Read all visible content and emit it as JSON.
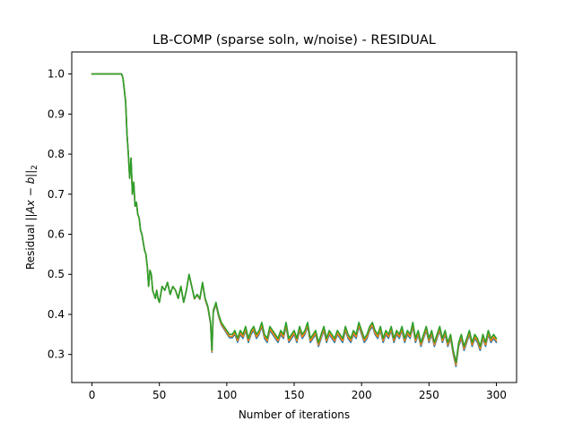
{
  "chart_data": {
    "type": "line",
    "title": "LB-COMP (sparse soln, w/noise) - RESIDUAL",
    "xlabel": "Number of iterations",
    "ylabel_prefix": "Residual ",
    "ylabel_math": "||Ax − b||",
    "ylabel_sub": "2",
    "xlim": [
      -15,
      315
    ],
    "ylim": [
      0.23,
      1.055
    ],
    "xticks": [
      0,
      50,
      100,
      150,
      200,
      250,
      300
    ],
    "xtick_labels": [
      "0",
      "50",
      "100",
      "150",
      "200",
      "250",
      "300"
    ],
    "yticks": [
      0.3,
      0.4,
      0.5,
      0.6,
      0.7,
      0.8,
      0.9,
      1.0
    ],
    "ytick_labels": [
      "0.3",
      "0.4",
      "0.5",
      "0.6",
      "0.7",
      "0.8",
      "0.9",
      "1.0"
    ],
    "grid": false,
    "legend": "none",
    "series": [
      {
        "color": "#1f77b4",
        "offset": -0.01
      },
      {
        "color": "#ff7f0e",
        "offset": -0.006
      },
      {
        "color": "#2ca02c",
        "offset": 0.0
      }
    ],
    "base_x": [
      0,
      22,
      23,
      25,
      26,
      27,
      28,
      29,
      30,
      31,
      32,
      33,
      34,
      35,
      36,
      37,
      38,
      39,
      40,
      41,
      42,
      43,
      44,
      45,
      46,
      47,
      48,
      49,
      50,
      52,
      54,
      56,
      58,
      60,
      62,
      64,
      66,
      68,
      70,
      72,
      74,
      76,
      78,
      80,
      82,
      84,
      86,
      88,
      89,
      90,
      92,
      94,
      96,
      98,
      100,
      102,
      104,
      106,
      108,
      110,
      112,
      114,
      116,
      118,
      120,
      122,
      124,
      126,
      128,
      130,
      132,
      134,
      136,
      138,
      140,
      142,
      144,
      146,
      148,
      150,
      152,
      154,
      156,
      158,
      160,
      162,
      164,
      166,
      168,
      170,
      172,
      174,
      176,
      178,
      180,
      182,
      184,
      186,
      188,
      190,
      192,
      194,
      196,
      198,
      200,
      202,
      204,
      206,
      208,
      210,
      212,
      214,
      216,
      218,
      220,
      222,
      224,
      226,
      228,
      230,
      232,
      234,
      236,
      238,
      240,
      242,
      244,
      246,
      248,
      250,
      252,
      254,
      256,
      258,
      260,
      262,
      264,
      266,
      268,
      270,
      272,
      274,
      276,
      278,
      280,
      282,
      284,
      286,
      288,
      290,
      292,
      294,
      296,
      298,
      300
    ],
    "base_y": [
      1.0,
      1.0,
      0.99,
      0.93,
      0.85,
      0.8,
      0.74,
      0.79,
      0.7,
      0.73,
      0.67,
      0.68,
      0.65,
      0.64,
      0.61,
      0.6,
      0.58,
      0.56,
      0.55,
      0.52,
      0.47,
      0.51,
      0.5,
      0.46,
      0.45,
      0.44,
      0.46,
      0.44,
      0.43,
      0.47,
      0.46,
      0.48,
      0.45,
      0.47,
      0.46,
      0.44,
      0.47,
      0.43,
      0.46,
      0.5,
      0.47,
      0.44,
      0.45,
      0.44,
      0.48,
      0.44,
      0.42,
      0.38,
      0.31,
      0.41,
      0.43,
      0.4,
      0.38,
      0.37,
      0.36,
      0.35,
      0.35,
      0.36,
      0.34,
      0.36,
      0.35,
      0.37,
      0.34,
      0.36,
      0.37,
      0.35,
      0.36,
      0.38,
      0.35,
      0.34,
      0.37,
      0.36,
      0.35,
      0.34,
      0.36,
      0.35,
      0.38,
      0.34,
      0.35,
      0.36,
      0.34,
      0.37,
      0.35,
      0.36,
      0.38,
      0.34,
      0.35,
      0.36,
      0.33,
      0.35,
      0.37,
      0.34,
      0.36,
      0.35,
      0.34,
      0.36,
      0.35,
      0.34,
      0.37,
      0.35,
      0.34,
      0.36,
      0.35,
      0.38,
      0.36,
      0.34,
      0.35,
      0.37,
      0.38,
      0.36,
      0.35,
      0.37,
      0.34,
      0.36,
      0.35,
      0.37,
      0.34,
      0.36,
      0.35,
      0.37,
      0.34,
      0.36,
      0.35,
      0.38,
      0.34,
      0.36,
      0.33,
      0.35,
      0.37,
      0.34,
      0.36,
      0.33,
      0.35,
      0.37,
      0.34,
      0.36,
      0.33,
      0.35,
      0.31,
      0.28,
      0.33,
      0.35,
      0.32,
      0.34,
      0.36,
      0.33,
      0.35,
      0.34,
      0.32,
      0.35,
      0.33,
      0.36,
      0.34,
      0.35,
      0.34
    ]
  }
}
